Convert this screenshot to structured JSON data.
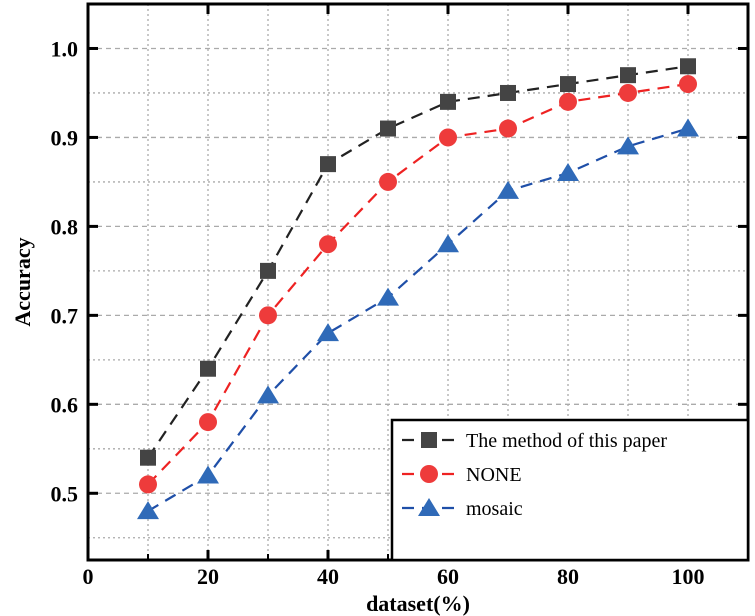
{
  "chart_data": {
    "type": "line",
    "title": "",
    "xlabel": "dataset(%)",
    "ylabel": "Accuracy",
    "xlim": [
      0,
      110
    ],
    "ylim": [
      0.425,
      1.05
    ],
    "xticks": [
      0,
      20,
      40,
      60,
      80,
      100
    ],
    "yticks": [
      0.5,
      0.6,
      0.7,
      0.8,
      0.9,
      1.0
    ],
    "ytick_labels": [
      "0.5",
      "0.6",
      "0.7",
      "0.8",
      "0.9",
      "1.0"
    ],
    "grid": true,
    "legend_position": "bottom-right",
    "x": [
      10,
      20,
      30,
      40,
      50,
      60,
      70,
      80,
      90,
      100
    ],
    "series": [
      {
        "name": "The method of this paper",
        "marker": "square",
        "color": "#444444",
        "line_color": "#222222",
        "values": [
          0.54,
          0.64,
          0.75,
          0.87,
          0.91,
          0.94,
          0.95,
          0.96,
          0.97,
          0.98
        ]
      },
      {
        "name": "NONE",
        "marker": "circle",
        "color": "#ee3b3b",
        "line_color": "#ee2222",
        "values": [
          0.51,
          0.58,
          0.7,
          0.78,
          0.85,
          0.9,
          0.91,
          0.94,
          0.95,
          0.96
        ]
      },
      {
        "name": "mosaic",
        "marker": "triangle",
        "color": "#2f6ab8",
        "line_color": "#1f4fa8",
        "values": [
          0.48,
          0.52,
          0.61,
          0.68,
          0.72,
          0.78,
          0.84,
          0.86,
          0.89,
          0.91
        ]
      }
    ]
  }
}
